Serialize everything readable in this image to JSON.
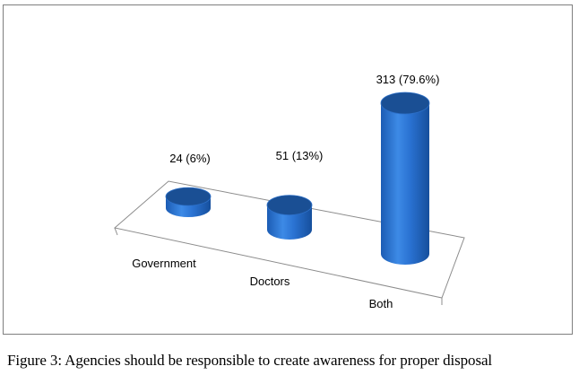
{
  "chart_data": {
    "type": "bar",
    "style": "3d-cylinder",
    "categories": [
      "Government",
      "Doctors",
      "Both"
    ],
    "values": [
      24,
      51,
      313
    ],
    "data_labels": [
      "24 (6%)",
      "51 (13%)",
      "313 (79.6%)"
    ],
    "title": "",
    "xlabel": "",
    "ylabel": "",
    "ylim": [
      0,
      313
    ],
    "grid": false,
    "legend": "none",
    "colors": {
      "body": "#1f68c6",
      "top": "#1a4f94",
      "floor_line": "#8c8c8c"
    }
  },
  "caption": "Figure 3: Agencies should be responsible to create awareness for proper disposal"
}
